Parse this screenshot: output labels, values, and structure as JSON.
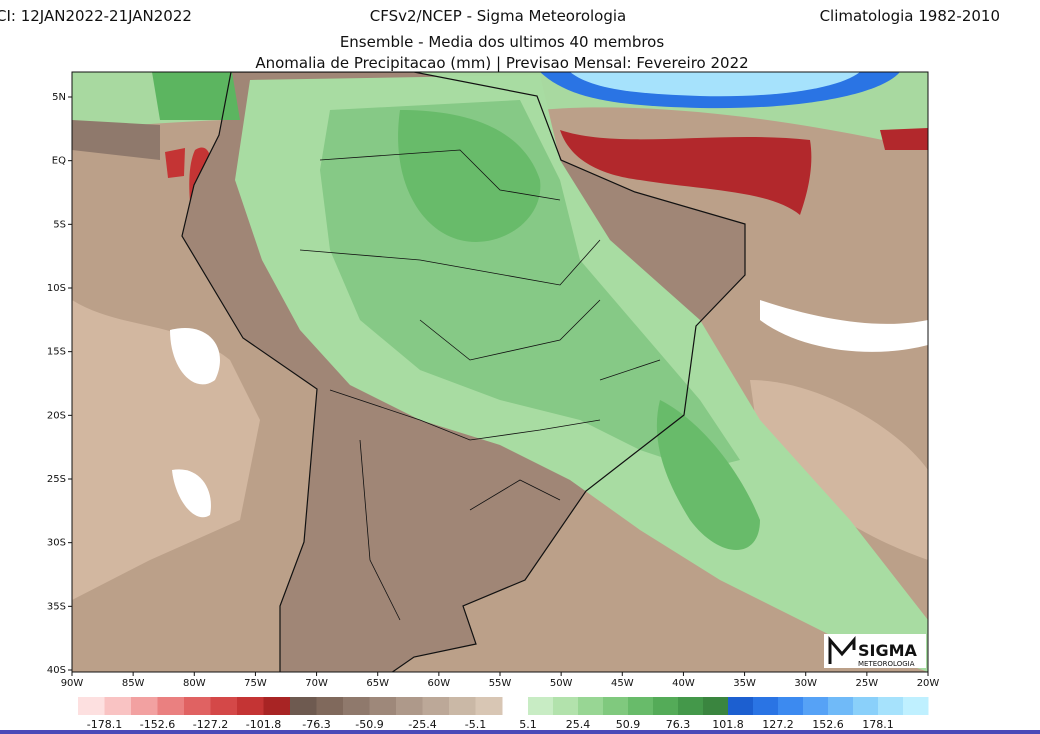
{
  "header": {
    "left": "CI: 12JAN2022-21JAN2022",
    "center": "CFSv2/NCEP - Sigma Meteorologia",
    "right": "Climatologia 1982-2010",
    "line2": "Ensemble - Media dos ultimos 40 membros",
    "line3": "Anomalia de Precipitacao (mm) | Previsao Mensal: Fevereiro 2022"
  },
  "lat_labels": [
    "5N",
    "EQ",
    "5S",
    "10S",
    "15S",
    "20S",
    "25S",
    "30S",
    "35S",
    "40S"
  ],
  "lon_labels": [
    "90W",
    "85W",
    "80W",
    "75W",
    "70W",
    "65W",
    "60W",
    "55W",
    "50W",
    "45W",
    "40W",
    "35W",
    "30W",
    "25W",
    "20W"
  ],
  "colorbar": {
    "negative": [
      -178.1,
      -152.6,
      -127.2,
      -101.8,
      -76.3,
      -50.9,
      -25.4,
      -5.1
    ],
    "positive": [
      5.1,
      25.4,
      50.9,
      76.3,
      101.8,
      127.2,
      152.6,
      178.1
    ],
    "negative_colors": [
      "#fde0e0",
      "#f9c3c3",
      "#f2a1a1",
      "#ea8080",
      "#e06262",
      "#d44848",
      "#c43434",
      "#a82424",
      "#6e5a50",
      "#80695c",
      "#8f796c",
      "#9e887a",
      "#ae998a",
      "#bca898",
      "#cab8a6",
      "#d8c6b4"
    ],
    "positive_colors": [
      "#c8ecc4",
      "#b2e2ac",
      "#98d694",
      "#80c97e",
      "#68bb6a",
      "#54ab58",
      "#44984a",
      "#3a853f",
      "#1c5fd0",
      "#2a74e4",
      "#3c8af0",
      "#56a2f6",
      "#70baf8",
      "#8ad0fa",
      "#a6e2fc",
      "#bff0ff"
    ]
  },
  "logo": {
    "name": "SIGMA",
    "sub": "METEOROLOGIA"
  }
}
